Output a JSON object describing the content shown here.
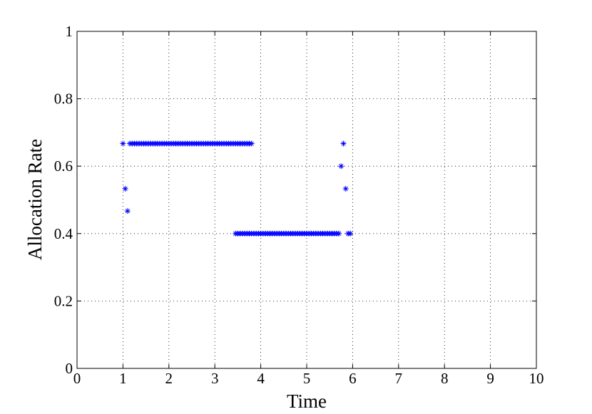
{
  "chart_data": {
    "type": "scatter",
    "xlabel": "Time",
    "ylabel": "Allocation Rate",
    "xlim": [
      0,
      10
    ],
    "ylim": [
      0,
      1
    ],
    "xticks": [
      0,
      1,
      2,
      3,
      4,
      5,
      6,
      7,
      8,
      9,
      10
    ],
    "yticks": [
      0,
      0.2,
      0.4,
      0.6,
      0.8,
      1
    ],
    "grid": true,
    "color": "#0000ff",
    "x": [
      1,
      1.05,
      1.1,
      1.15,
      1.2,
      1.25,
      1.3,
      1.35,
      1.4,
      1.45,
      1.5,
      1.55,
      1.6,
      1.65,
      1.7,
      1.75,
      1.8,
      1.85,
      1.9,
      1.95,
      2,
      2.05,
      2.1,
      2.15,
      2.2,
      2.25,
      2.3,
      2.35,
      2.4,
      2.45,
      2.5,
      2.55,
      2.6,
      2.65,
      2.7,
      2.75,
      2.8,
      2.85,
      2.9,
      2.95,
      3,
      3.05,
      3.1,
      3.15,
      3.2,
      3.25,
      3.3,
      3.35,
      3.4,
      3.45,
      3.5,
      3.55,
      3.6,
      3.65,
      3.7,
      3.75,
      3.8,
      3.45,
      3.5,
      3.55,
      3.6,
      3.65,
      3.7,
      3.75,
      3.8,
      3.85,
      3.9,
      3.95,
      4,
      4.05,
      4.1,
      4.15,
      4.2,
      4.25,
      4.3,
      4.35,
      4.4,
      4.45,
      4.5,
      4.55,
      4.6,
      4.65,
      4.7,
      4.75,
      4.8,
      4.85,
      4.9,
      4.95,
      5,
      5.05,
      5.1,
      5.15,
      5.2,
      5.25,
      5.3,
      5.35,
      5.4,
      5.45,
      5.5,
      5.55,
      5.6,
      5.65,
      5.7,
      5.75,
      5.8,
      5.85,
      5.9,
      5.95
    ],
    "y": [
      0.667,
      0.533,
      0.467,
      0.667,
      0.667,
      0.667,
      0.667,
      0.667,
      0.667,
      0.667,
      0.667,
      0.667,
      0.667,
      0.667,
      0.667,
      0.667,
      0.667,
      0.667,
      0.667,
      0.667,
      0.667,
      0.667,
      0.667,
      0.667,
      0.667,
      0.667,
      0.667,
      0.667,
      0.667,
      0.667,
      0.667,
      0.667,
      0.667,
      0.667,
      0.667,
      0.667,
      0.667,
      0.667,
      0.667,
      0.667,
      0.667,
      0.667,
      0.667,
      0.667,
      0.667,
      0.667,
      0.667,
      0.667,
      0.667,
      0.667,
      0.667,
      0.667,
      0.667,
      0.667,
      0.667,
      0.667,
      0.667,
      0.4,
      0.4,
      0.4,
      0.4,
      0.4,
      0.4,
      0.4,
      0.4,
      0.4,
      0.4,
      0.4,
      0.4,
      0.4,
      0.4,
      0.4,
      0.4,
      0.4,
      0.4,
      0.4,
      0.4,
      0.4,
      0.4,
      0.4,
      0.4,
      0.4,
      0.4,
      0.4,
      0.4,
      0.4,
      0.4,
      0.4,
      0.4,
      0.4,
      0.4,
      0.4,
      0.4,
      0.4,
      0.4,
      0.4,
      0.4,
      0.4,
      0.4,
      0.4,
      0.4,
      0.4,
      0.4,
      0.6,
      0.667,
      0.533,
      0.4,
      0.4
    ]
  }
}
